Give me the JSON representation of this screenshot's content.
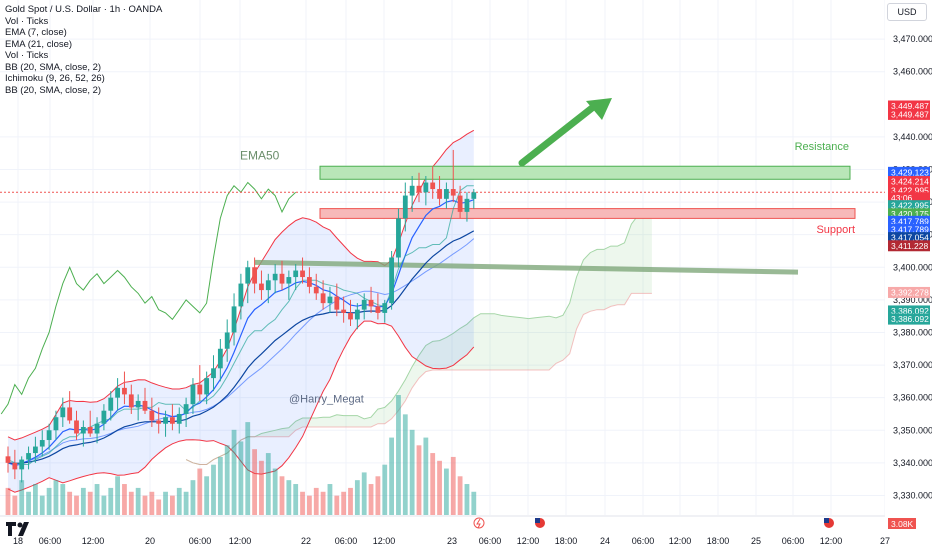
{
  "header": {
    "title": "Gold Spot / U.S. Dollar · 1h · OANDA",
    "currency": "USD",
    "indicators": [
      "Vol · Ticks",
      "EMA (7, close)",
      "EMA (21, close)",
      "Vol · Ticks",
      "BB (20, SMA, close, 2)",
      "Ichimoku (9, 26, 52, 26)",
      "BB (20, SMA, close, 2)"
    ]
  },
  "annotations": {
    "ema50": "EMA50",
    "resistance": "Resistance",
    "support": "Support",
    "watermark": "@Harry_Megat"
  },
  "colors": {
    "up": "#26a69a",
    "down": "#ef5350",
    "ema_blue": "#2962ff",
    "ema_dark": "#0d47a1",
    "bb_red": "#f23645",
    "ichimoku_green": "#4caf50",
    "resistance_fill": "#b9e6b8",
    "support_fill": "#f7b9b9"
  },
  "chart_data": {
    "type": "candlestick",
    "symbol": "Gold Spot / U.S. Dollar",
    "interval": "1h",
    "yaxis_ticks": [
      3330,
      3340,
      3350,
      3360,
      3370,
      3380,
      3390,
      3400,
      3410,
      3420,
      3430,
      3440,
      3460,
      3470
    ],
    "ylim": [
      3324,
      3482
    ],
    "xaxis_ticks": [
      "18",
      "06:00",
      "12:00",
      "20",
      "06:00",
      "12:00",
      "22",
      "06:00",
      "12:00",
      "23",
      "06:00",
      "12:00",
      "18:00",
      "24",
      "06:00",
      "12:00",
      "18:00",
      "25",
      "06:00",
      "12:00",
      "27"
    ],
    "price_tags": [
      {
        "label": "3,449.487",
        "value": 3449.487,
        "color": "#f23645"
      },
      {
        "label": "3,449.487",
        "value": 3446.9,
        "color": "#f23645"
      },
      {
        "label": "3,429.123",
        "value": 3429.123,
        "color": "#2962ff"
      },
      {
        "label": "3,424.214",
        "value": 3426.3,
        "color": "#f23645"
      },
      {
        "label": "3,422.995",
        "value": 3423.6,
        "color": "#f23645"
      },
      {
        "label": "43:06",
        "value": 3421.3,
        "color": "#f23645"
      },
      {
        "label": "3,422.995",
        "value": 3418.9,
        "color": "#26a69a"
      },
      {
        "label": "3,420.175",
        "value": 3416.4,
        "color": "#4caf50"
      },
      {
        "label": "3,417.789",
        "value": 3414.1,
        "color": "#2962ff"
      },
      {
        "label": "3,417.789",
        "value": 3411.6,
        "color": "#2962ff"
      },
      {
        "label": "3,417.054",
        "value": 3409.1,
        "color": "#0d47a1"
      },
      {
        "label": "3,411.228",
        "value": 3406.6,
        "color": "#b22833"
      },
      {
        "label": "3,392.278",
        "value": 3392.278,
        "color": "#f7a9a9"
      },
      {
        "label": "3,386.092",
        "value": 3386.6,
        "color": "#26a69a"
      },
      {
        "label": "3,386.092",
        "value": 3384.1,
        "color": "#26a69a"
      }
    ],
    "volume_tag": "3.08K",
    "candles": [
      {
        "o": 3342,
        "h": 3345,
        "l": 3337,
        "c": 3340
      },
      {
        "o": 3340,
        "h": 3344,
        "l": 3335,
        "c": 3338
      },
      {
        "o": 3338,
        "h": 3342,
        "l": 3334,
        "c": 3341
      },
      {
        "o": 3341,
        "h": 3345,
        "l": 3338,
        "c": 3343
      },
      {
        "o": 3343,
        "h": 3348,
        "l": 3340,
        "c": 3345
      },
      {
        "o": 3345,
        "h": 3350,
        "l": 3342,
        "c": 3347
      },
      {
        "o": 3347,
        "h": 3352,
        "l": 3344,
        "c": 3350
      },
      {
        "o": 3350,
        "h": 3356,
        "l": 3347,
        "c": 3354
      },
      {
        "o": 3354,
        "h": 3360,
        "l": 3351,
        "c": 3357
      },
      {
        "o": 3357,
        "h": 3362,
        "l": 3352,
        "c": 3353
      },
      {
        "o": 3353,
        "h": 3356,
        "l": 3347,
        "c": 3349
      },
      {
        "o": 3349,
        "h": 3353,
        "l": 3345,
        "c": 3351
      },
      {
        "o": 3351,
        "h": 3356,
        "l": 3348,
        "c": 3349
      },
      {
        "o": 3349,
        "h": 3354,
        "l": 3346,
        "c": 3352
      },
      {
        "o": 3352,
        "h": 3358,
        "l": 3350,
        "c": 3356
      },
      {
        "o": 3356,
        "h": 3362,
        "l": 3353,
        "c": 3360
      },
      {
        "o": 3360,
        "h": 3366,
        "l": 3356,
        "c": 3363
      },
      {
        "o": 3363,
        "h": 3368,
        "l": 3358,
        "c": 3361
      },
      {
        "o": 3361,
        "h": 3364,
        "l": 3355,
        "c": 3357
      },
      {
        "o": 3357,
        "h": 3361,
        "l": 3353,
        "c": 3359
      },
      {
        "o": 3359,
        "h": 3363,
        "l": 3355,
        "c": 3356
      },
      {
        "o": 3356,
        "h": 3360,
        "l": 3351,
        "c": 3353
      },
      {
        "o": 3353,
        "h": 3357,
        "l": 3349,
        "c": 3352
      },
      {
        "o": 3352,
        "h": 3356,
        "l": 3348,
        "c": 3354
      },
      {
        "o": 3354,
        "h": 3358,
        "l": 3350,
        "c": 3352
      },
      {
        "o": 3352,
        "h": 3357,
        "l": 3349,
        "c": 3355
      },
      {
        "o": 3355,
        "h": 3360,
        "l": 3351,
        "c": 3358
      },
      {
        "o": 3358,
        "h": 3366,
        "l": 3355,
        "c": 3364
      },
      {
        "o": 3364,
        "h": 3370,
        "l": 3359,
        "c": 3361
      },
      {
        "o": 3361,
        "h": 3368,
        "l": 3358,
        "c": 3366
      },
      {
        "o": 3366,
        "h": 3373,
        "l": 3362,
        "c": 3369
      },
      {
        "o": 3369,
        "h": 3378,
        "l": 3365,
        "c": 3375
      },
      {
        "o": 3375,
        "h": 3384,
        "l": 3371,
        "c": 3380
      },
      {
        "o": 3380,
        "h": 3392,
        "l": 3376,
        "c": 3388
      },
      {
        "o": 3388,
        "h": 3398,
        "l": 3384,
        "c": 3395
      },
      {
        "o": 3395,
        "h": 3402,
        "l": 3389,
        "c": 3400
      },
      {
        "o": 3400,
        "h": 3403,
        "l": 3392,
        "c": 3395
      },
      {
        "o": 3395,
        "h": 3399,
        "l": 3390,
        "c": 3393
      },
      {
        "o": 3393,
        "h": 3398,
        "l": 3389,
        "c": 3396
      },
      {
        "o": 3396,
        "h": 3401,
        "l": 3392,
        "c": 3398
      },
      {
        "o": 3398,
        "h": 3402,
        "l": 3393,
        "c": 3395
      },
      {
        "o": 3395,
        "h": 3399,
        "l": 3390,
        "c": 3397
      },
      {
        "o": 3397,
        "h": 3401,
        "l": 3393,
        "c": 3399
      },
      {
        "o": 3399,
        "h": 3403,
        "l": 3395,
        "c": 3397
      },
      {
        "o": 3397,
        "h": 3400,
        "l": 3392,
        "c": 3394
      },
      {
        "o": 3394,
        "h": 3398,
        "l": 3390,
        "c": 3392
      },
      {
        "o": 3392,
        "h": 3396,
        "l": 3387,
        "c": 3389
      },
      {
        "o": 3389,
        "h": 3394,
        "l": 3386,
        "c": 3391
      },
      {
        "o": 3391,
        "h": 3395,
        "l": 3385,
        "c": 3387
      },
      {
        "o": 3387,
        "h": 3391,
        "l": 3383,
        "c": 3386
      },
      {
        "o": 3386,
        "h": 3390,
        "l": 3382,
        "c": 3384
      },
      {
        "o": 3384,
        "h": 3389,
        "l": 3381,
        "c": 3387
      },
      {
        "o": 3387,
        "h": 3392,
        "l": 3384,
        "c": 3390
      },
      {
        "o": 3390,
        "h": 3394,
        "l": 3386,
        "c": 3388
      },
      {
        "o": 3388,
        "h": 3392,
        "l": 3384,
        "c": 3386
      },
      {
        "o": 3386,
        "h": 3390,
        "l": 3383,
        "c": 3389
      },
      {
        "o": 3389,
        "h": 3405,
        "l": 3387,
        "c": 3403
      },
      {
        "o": 3403,
        "h": 3418,
        "l": 3400,
        "c": 3415
      },
      {
        "o": 3415,
        "h": 3426,
        "l": 3411,
        "c": 3422
      },
      {
        "o": 3422,
        "h": 3428,
        "l": 3417,
        "c": 3425
      },
      {
        "o": 3425,
        "h": 3429,
        "l": 3420,
        "c": 3423
      },
      {
        "o": 3423,
        "h": 3428,
        "l": 3419,
        "c": 3426
      },
      {
        "o": 3426,
        "h": 3431,
        "l": 3421,
        "c": 3424
      },
      {
        "o": 3424,
        "h": 3428,
        "l": 3419,
        "c": 3421
      },
      {
        "o": 3421,
        "h": 3426,
        "l": 3418,
        "c": 3424
      },
      {
        "o": 3424,
        "h": 3436,
        "l": 3420,
        "c": 3422
      },
      {
        "o": 3422,
        "h": 3425,
        "l": 3415,
        "c": 3417
      },
      {
        "o": 3417,
        "h": 3423,
        "l": 3414,
        "c": 3421
      },
      {
        "o": 3421,
        "h": 3424,
        "l": 3418,
        "c": 3423
      }
    ],
    "volumes": [
      0.7,
      0.5,
      0.9,
      0.6,
      0.8,
      0.5,
      0.7,
      0.9,
      0.8,
      0.6,
      0.5,
      0.7,
      0.6,
      0.8,
      0.5,
      0.7,
      1.0,
      0.8,
      0.6,
      0.7,
      0.5,
      0.6,
      0.4,
      0.6,
      0.5,
      0.7,
      0.6,
      0.9,
      1.2,
      1.0,
      1.3,
      1.5,
      1.8,
      2.2,
      1.9,
      2.4,
      1.7,
      1.4,
      1.6,
      1.2,
      1.0,
      0.9,
      0.8,
      0.6,
      0.5,
      0.7,
      0.6,
      0.8,
      0.5,
      0.6,
      0.7,
      0.9,
      1.1,
      0.8,
      1.0,
      1.3,
      2.0,
      3.1,
      2.6,
      2.2,
      1.8,
      2.0,
      1.6,
      1.4,
      1.2,
      1.5,
      1.0,
      0.8,
      0.6
    ]
  }
}
